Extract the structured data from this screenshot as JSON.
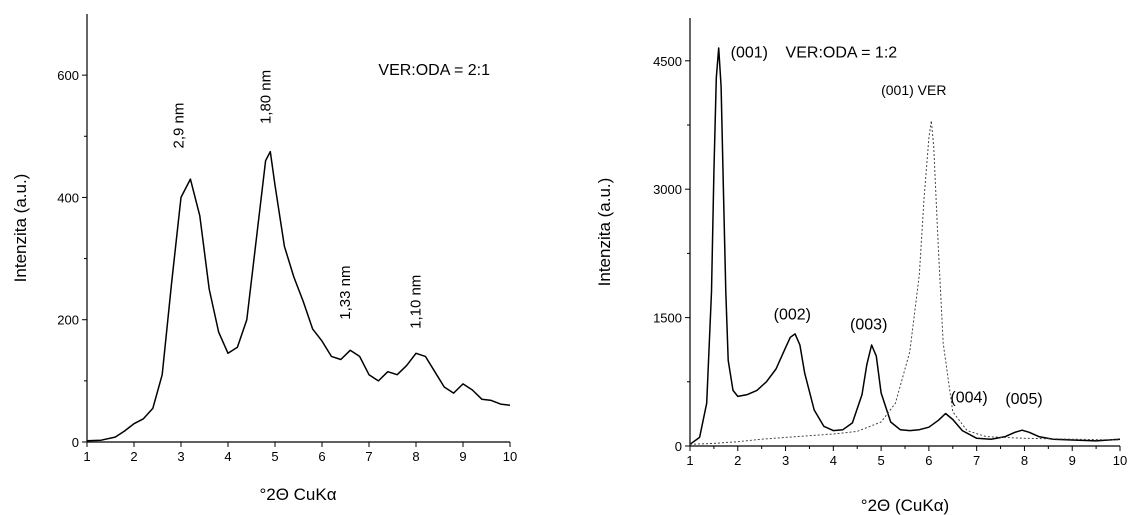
{
  "chart_data": [
    {
      "type": "line",
      "xlabel": "°2Θ CuKα",
      "ylabel": "Intenzita (a.u.)",
      "xlim": [
        1,
        10
      ],
      "ylim": [
        0,
        700
      ],
      "x_ticks": [
        1,
        2,
        3,
        4,
        5,
        6,
        7,
        8,
        9,
        10
      ],
      "y_ticks": [
        0,
        200,
        400,
        600
      ],
      "grid": false,
      "annotations": [
        {
          "text": "VER:ODA = 2:1",
          "x": 7.2,
          "y": 600
        },
        {
          "text": "2,9 nm",
          "x": 3.05,
          "y": 480,
          "rotated": true
        },
        {
          "text": "1,80 nm",
          "x": 4.9,
          "y": 520,
          "rotated": true
        },
        {
          "text": "1,33 nm",
          "x": 6.6,
          "y": 200,
          "rotated": true
        },
        {
          "text": "1,10 nm",
          "x": 8.1,
          "y": 185,
          "rotated": true
        }
      ],
      "series": [
        {
          "style": "solid",
          "x": [
            1.0,
            1.3,
            1.6,
            1.8,
            2.0,
            2.2,
            2.4,
            2.6,
            2.8,
            3.0,
            3.2,
            3.4,
            3.6,
            3.8,
            4.0,
            4.2,
            4.4,
            4.6,
            4.8,
            4.9,
            5.0,
            5.2,
            5.4,
            5.6,
            5.8,
            6.0,
            6.2,
            6.4,
            6.6,
            6.8,
            7.0,
            7.2,
            7.4,
            7.6,
            7.8,
            8.0,
            8.2,
            8.4,
            8.6,
            8.8,
            9.0,
            9.2,
            9.4,
            9.6,
            9.8,
            10.0
          ],
          "y": [
            2,
            3,
            8,
            18,
            30,
            38,
            55,
            110,
            260,
            400,
            430,
            370,
            250,
            180,
            145,
            155,
            200,
            330,
            460,
            475,
            420,
            320,
            270,
            230,
            185,
            165,
            140,
            135,
            150,
            140,
            110,
            100,
            115,
            110,
            125,
            145,
            140,
            115,
            90,
            80,
            95,
            85,
            70,
            68,
            62,
            60
          ]
        }
      ]
    },
    {
      "type": "line",
      "xlabel": "°2Θ (CuKα)",
      "ylabel": "Intenzita (a.u.)",
      "xlim": [
        1,
        10
      ],
      "ylim": [
        0,
        5000
      ],
      "x_ticks": [
        1,
        2,
        3,
        4,
        5,
        6,
        7,
        8,
        9,
        10
      ],
      "y_ticks": [
        0,
        1500,
        3000,
        4500
      ],
      "grid": false,
      "annotations": [
        {
          "text": "(001)",
          "x": 1.85,
          "y": 4540
        },
        {
          "text": "VER:ODA = 1:2",
          "x": 3.0,
          "y": 4540
        },
        {
          "text": "(001) VER",
          "x": 5.0,
          "y": 4100
        },
        {
          "text": "(002)",
          "x": 2.75,
          "y": 1480
        },
        {
          "text": "(003)",
          "x": 4.35,
          "y": 1360
        },
        {
          "text": "(004)",
          "x": 6.45,
          "y": 510
        },
        {
          "text": "(005)",
          "x": 7.6,
          "y": 490
        }
      ],
      "series": [
        {
          "name": "VER:ODA = 1:2",
          "style": "solid",
          "x": [
            1.0,
            1.2,
            1.35,
            1.45,
            1.5,
            1.55,
            1.6,
            1.65,
            1.7,
            1.75,
            1.8,
            1.9,
            2.0,
            2.2,
            2.4,
            2.6,
            2.8,
            3.0,
            3.1,
            3.2,
            3.3,
            3.4,
            3.6,
            3.8,
            4.0,
            4.2,
            4.4,
            4.6,
            4.7,
            4.8,
            4.9,
            5.0,
            5.2,
            5.4,
            5.6,
            5.8,
            6.0,
            6.2,
            6.35,
            6.5,
            6.7,
            7.0,
            7.3,
            7.6,
            7.8,
            7.95,
            8.1,
            8.3,
            8.6,
            9.0,
            9.5,
            10.0
          ],
          "y": [
            20,
            100,
            500,
            1800,
            3200,
            4300,
            4650,
            4200,
            3000,
            1800,
            1000,
            650,
            580,
            600,
            650,
            750,
            900,
            1150,
            1270,
            1310,
            1180,
            850,
            420,
            230,
            180,
            190,
            270,
            600,
            950,
            1180,
            1050,
            620,
            280,
            190,
            180,
            190,
            220,
            300,
            380,
            310,
            180,
            90,
            80,
            110,
            160,
            185,
            160,
            110,
            80,
            70,
            60,
            80
          ]
        },
        {
          "name": "(001) VER",
          "style": "dotted",
          "x": [
            1.0,
            1.5,
            2.0,
            2.5,
            3.0,
            3.5,
            4.0,
            4.5,
            5.0,
            5.3,
            5.6,
            5.8,
            5.9,
            6.0,
            6.05,
            6.1,
            6.2,
            6.3,
            6.5,
            6.8,
            7.2,
            8.0,
            9.0,
            10.0
          ],
          "y": [
            20,
            30,
            50,
            80,
            100,
            120,
            140,
            170,
            280,
            500,
            1100,
            2000,
            2900,
            3600,
            3800,
            3500,
            2300,
            1200,
            400,
            180,
            110,
            90,
            80,
            70
          ]
        }
      ]
    }
  ]
}
